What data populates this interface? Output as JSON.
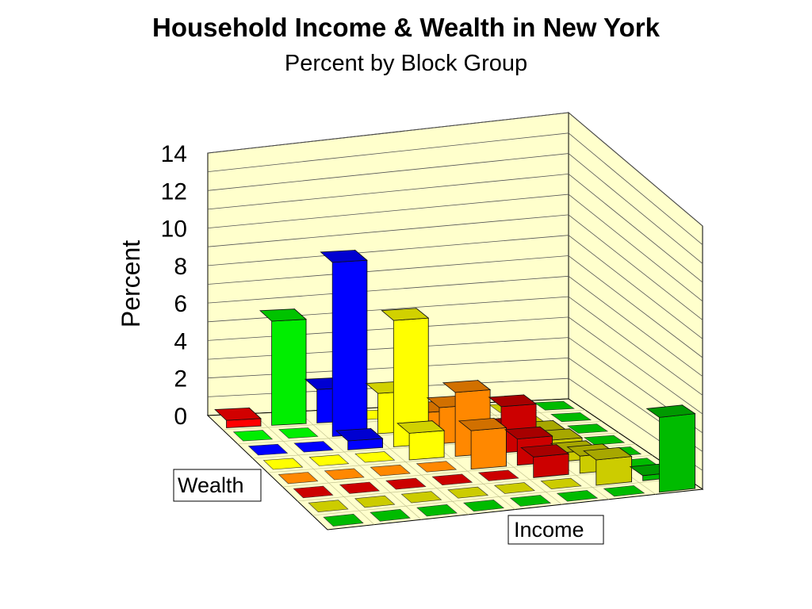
{
  "chart_data": {
    "type": "bar3d",
    "title": "Household Income & Wealth in New York",
    "subtitle": "Percent by Block Group",
    "ylabel": "Percent",
    "xlabel": "Income",
    "zlabel": "Wealth",
    "ylim": [
      0,
      14
    ],
    "yticks": [
      0,
      2,
      4,
      6,
      8,
      10,
      12,
      14
    ],
    "grid": true,
    "row_colors": [
      "#ff0000",
      "#00ee00",
      "#0000ff",
      "#ffff00",
      "#ff8800",
      "#cc0000",
      "#cccc00",
      "#00bb00"
    ],
    "col_colors": [
      "#ff0000",
      "#00ee00",
      "#0000ff",
      "#ffff00",
      "#ff8800",
      "#cc0000",
      "#cccc00",
      "#00bb00"
    ],
    "values": [
      [
        0.4,
        5.6,
        1.8,
        0.0,
        0.0,
        0.0,
        0.0,
        0.0
      ],
      [
        0.0,
        0.0,
        9.5,
        2.2,
        1.0,
        0.0,
        0.0,
        0.0
      ],
      [
        0.0,
        0.0,
        0.5,
        7.0,
        2.0,
        0.6,
        0.3,
        0.0
      ],
      [
        0.0,
        0.0,
        0.0,
        1.5,
        3.6,
        2.6,
        0.5,
        0.0
      ],
      [
        0.0,
        0.0,
        0.0,
        0.0,
        2.2,
        1.5,
        0.5,
        0.0
      ],
      [
        0.0,
        0.0,
        0.0,
        0.0,
        0.0,
        1.2,
        1.0,
        0.0
      ],
      [
        0.0,
        0.0,
        0.0,
        0.0,
        0.0,
        0.0,
        1.5,
        0.3
      ],
      [
        0.0,
        0.0,
        0.0,
        0.0,
        0.0,
        0.0,
        0.0,
        4.5
      ]
    ]
  }
}
